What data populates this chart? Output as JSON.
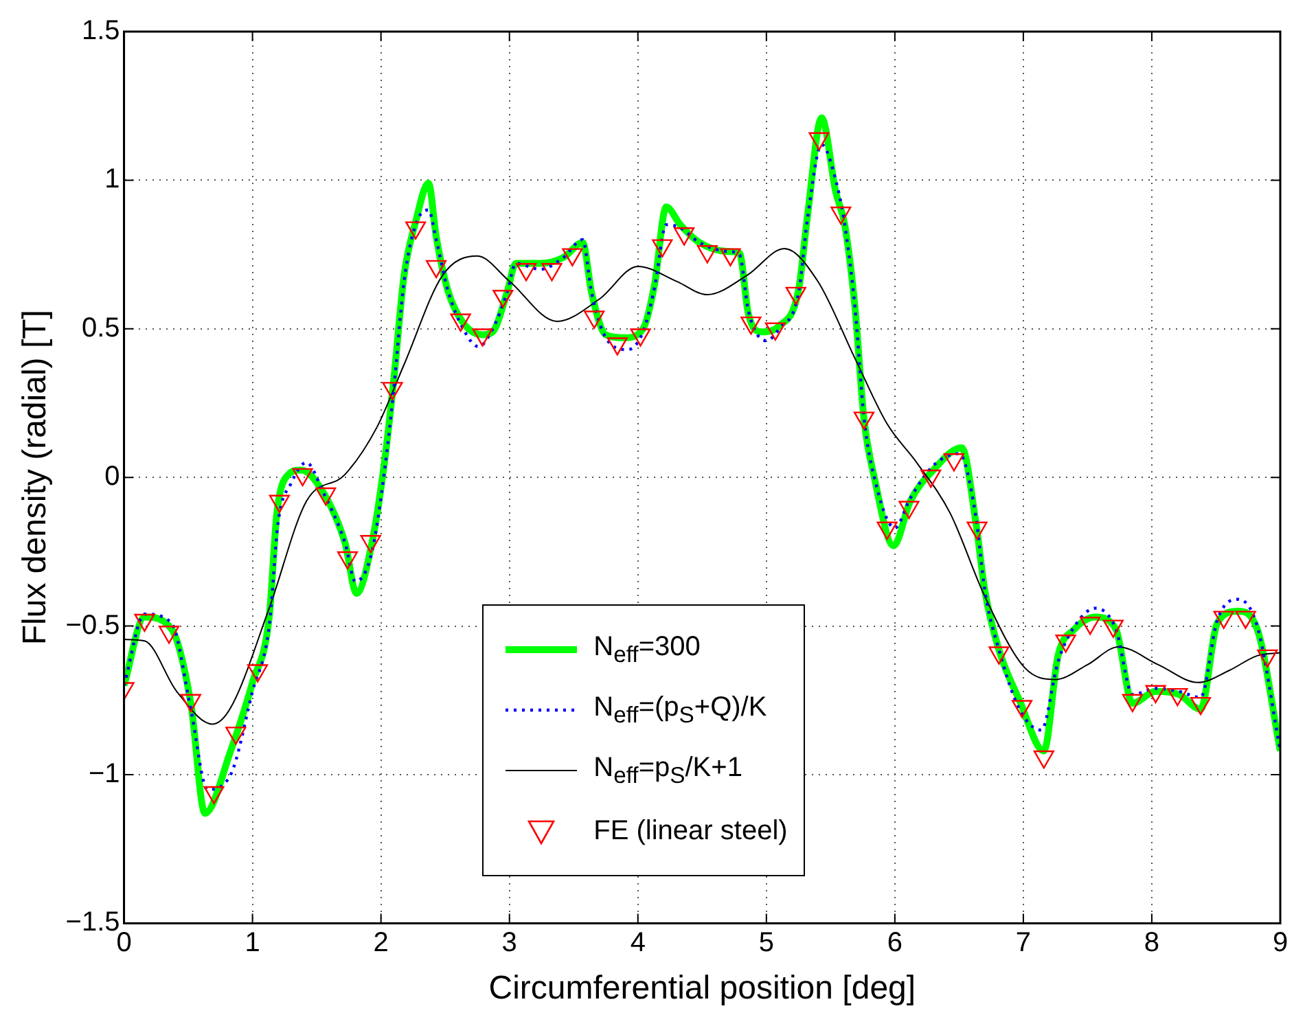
{
  "chart_data": {
    "type": "line",
    "xlabel": "Circumferential position [deg]",
    "ylabel": "Flux density (radial) [T]",
    "xlim": [
      0,
      9
    ],
    "xticks": [
      0,
      1,
      2,
      3,
      4,
      5,
      6,
      7,
      8,
      9
    ],
    "ylim": [
      -1.5,
      1.5
    ],
    "yticks": [
      {
        "value": -1.5,
        "label": "−1.5"
      },
      {
        "value": -1,
        "label": "−1"
      },
      {
        "value": -0.5,
        "label": "−0.5"
      },
      0,
      0.5,
      1,
      1.5
    ],
    "grid": true,
    "legend": "bottom",
    "series": [
      {
        "name": "N$_{eff}$=300",
        "color": "#00ff00",
        "line_style": "solid",
        "marker": "none",
        "x": [
          0,
          0.16,
          0.37,
          0.52,
          0.63,
          0.83,
          1.0,
          1.13,
          1.19,
          1.28,
          1.38,
          1.55,
          1.72,
          1.81,
          1.93,
          2.03,
          2.1,
          2.18,
          2.27,
          2.37,
          2.43,
          2.52,
          2.64,
          2.79,
          2.87,
          2.98,
          3.05,
          3.24,
          3.42,
          3.57,
          3.64,
          3.75,
          3.9,
          4.04,
          4.13,
          4.22,
          4.33,
          4.48,
          4.7,
          4.79,
          4.86,
          4.96,
          5.1,
          5.25,
          5.32,
          5.43,
          5.54,
          5.61,
          5.69,
          5.76,
          5.84,
          5.99,
          6.12,
          6.3,
          6.52,
          6.63,
          6.7,
          6.81,
          6.97,
          7.16,
          7.27,
          7.4,
          7.56,
          7.72,
          7.85,
          8.03,
          8.21,
          8.38,
          8.51,
          8.67,
          8.82,
          9.0
        ],
        "values": [
          -0.7,
          -0.47,
          -0.51,
          -0.76,
          -1.13,
          -0.92,
          -0.69,
          -0.47,
          -0.12,
          0.01,
          0.025,
          -0.05,
          -0.22,
          -0.39,
          -0.22,
          0.06,
          0.33,
          0.68,
          0.86,
          0.99,
          0.81,
          0.63,
          0.52,
          0.48,
          0.49,
          0.62,
          0.72,
          0.72,
          0.74,
          0.79,
          0.62,
          0.48,
          0.47,
          0.5,
          0.65,
          0.91,
          0.85,
          0.79,
          0.76,
          0.755,
          0.55,
          0.49,
          0.51,
          0.63,
          0.88,
          1.21,
          0.96,
          0.85,
          0.57,
          0.195,
          0.0,
          -0.23,
          -0.08,
          0.025,
          0.1,
          -0.15,
          -0.38,
          -0.58,
          -0.75,
          -0.92,
          -0.6,
          -0.51,
          -0.47,
          -0.51,
          -0.76,
          -0.72,
          -0.73,
          -0.78,
          -0.49,
          -0.45,
          -0.51,
          -0.92
        ]
      },
      {
        "name": "N$_{eff}$=(p$_{S}$+Q)/K",
        "color": "#0000ff",
        "line_style": "dotted",
        "marker": "none",
        "x": [
          0,
          0.16,
          0.37,
          0.52,
          0.65,
          0.83,
          1.0,
          1.13,
          1.2,
          1.3,
          1.42,
          1.55,
          1.72,
          1.8,
          1.93,
          2.03,
          2.1,
          2.18,
          2.27,
          2.37,
          2.43,
          2.52,
          2.64,
          2.76,
          2.87,
          2.98,
          3.05,
          3.24,
          3.42,
          3.57,
          3.64,
          3.75,
          3.92,
          4.04,
          4.13,
          4.22,
          4.33,
          4.48,
          4.7,
          4.79,
          4.86,
          5.0,
          5.1,
          5.25,
          5.32,
          5.43,
          5.54,
          5.61,
          5.69,
          5.76,
          5.84,
          6.0,
          6.12,
          6.3,
          6.5,
          6.63,
          6.7,
          6.81,
          6.97,
          7.14,
          7.27,
          7.4,
          7.56,
          7.72,
          7.85,
          8.03,
          8.21,
          8.38,
          8.51,
          8.67,
          8.82,
          9.0
        ],
        "values": [
          -0.7,
          -0.46,
          -0.49,
          -0.78,
          -1.05,
          -1.0,
          -0.72,
          -0.5,
          -0.15,
          -0.02,
          0.05,
          -0.05,
          -0.22,
          -0.35,
          -0.25,
          0.03,
          0.3,
          0.66,
          0.85,
          0.9,
          0.8,
          0.63,
          0.5,
          0.44,
          0.5,
          0.62,
          0.72,
          0.7,
          0.74,
          0.8,
          0.62,
          0.47,
          0.43,
          0.49,
          0.64,
          0.85,
          0.84,
          0.79,
          0.76,
          0.75,
          0.56,
          0.46,
          0.5,
          0.62,
          0.87,
          1.12,
          1.0,
          0.85,
          0.57,
          0.2,
          0.0,
          -0.17,
          -0.07,
          0.04,
          0.08,
          -0.13,
          -0.38,
          -0.58,
          -0.78,
          -0.85,
          -0.62,
          -0.5,
          -0.44,
          -0.51,
          -0.73,
          -0.71,
          -0.72,
          -0.74,
          -0.48,
          -0.41,
          -0.5,
          -0.92
        ]
      },
      {
        "name": "N$_{eff}$=p$_{S}$/K+1",
        "color": "#000000",
        "line_style": "solid",
        "marker": "none",
        "x": [
          0,
          0.16,
          0.41,
          0.69,
          0.83,
          1.13,
          1.42,
          1.72,
          1.97,
          2.18,
          2.48,
          2.75,
          3.0,
          3.37,
          3.7,
          4.0,
          4.3,
          4.54,
          4.85,
          5.14,
          5.4,
          5.69,
          5.94,
          6.17,
          6.43,
          6.7,
          7.01,
          7.25,
          7.5,
          7.74,
          8.05,
          8.36,
          8.6,
          8.82,
          9.0
        ],
        "values": [
          -0.545,
          -0.55,
          -0.72,
          -0.83,
          -0.775,
          -0.44,
          -0.08,
          0.01,
          0.17,
          0.38,
          0.68,
          0.745,
          0.66,
          0.525,
          0.6,
          0.71,
          0.66,
          0.615,
          0.68,
          0.77,
          0.66,
          0.4,
          0.18,
          0.05,
          -0.12,
          -0.4,
          -0.64,
          -0.68,
          -0.63,
          -0.57,
          -0.63,
          -0.69,
          -0.65,
          -0.6,
          -0.59
        ]
      },
      {
        "name": "FE (linear steel)",
        "type": "scatter",
        "color": "#ff0000",
        "marker": "triangle",
        "x": [
          0,
          0.16,
          0.35,
          0.52,
          0.7,
          0.87,
          1.04,
          1.21,
          1.39,
          1.57,
          1.74,
          1.92,
          2.09,
          2.27,
          2.43,
          2.62,
          2.79,
          2.95,
          3.13,
          3.33,
          3.49,
          3.66,
          3.84,
          4.02,
          4.19,
          4.36,
          4.54,
          4.72,
          4.88,
          5.07,
          5.23,
          5.41,
          5.58,
          5.76,
          5.94,
          6.11,
          6.28,
          6.46,
          6.64,
          6.81,
          6.99,
          7.16,
          7.33,
          7.52,
          7.7,
          7.85,
          8.03,
          8.2,
          8.38,
          8.56,
          8.73,
          8.9
        ],
        "values": [
          -0.71,
          -0.48,
          -0.52,
          -0.75,
          -1.06,
          -0.86,
          -0.65,
          -0.08,
          0.01,
          -0.055,
          -0.27,
          -0.215,
          0.3,
          0.84,
          0.71,
          0.53,
          0.48,
          0.61,
          0.7,
          0.7,
          0.75,
          0.54,
          0.45,
          0.48,
          0.78,
          0.82,
          0.76,
          0.75,
          0.52,
          0.5,
          0.62,
          1.14,
          0.89,
          0.2,
          -0.17,
          -0.1,
          0.005,
          0.06,
          -0.17,
          -0.59,
          -0.77,
          -0.94,
          -0.55,
          -0.49,
          -0.5,
          -0.75,
          -0.72,
          -0.73,
          -0.76,
          -0.47,
          -0.47,
          -0.6
        ]
      }
    ]
  }
}
